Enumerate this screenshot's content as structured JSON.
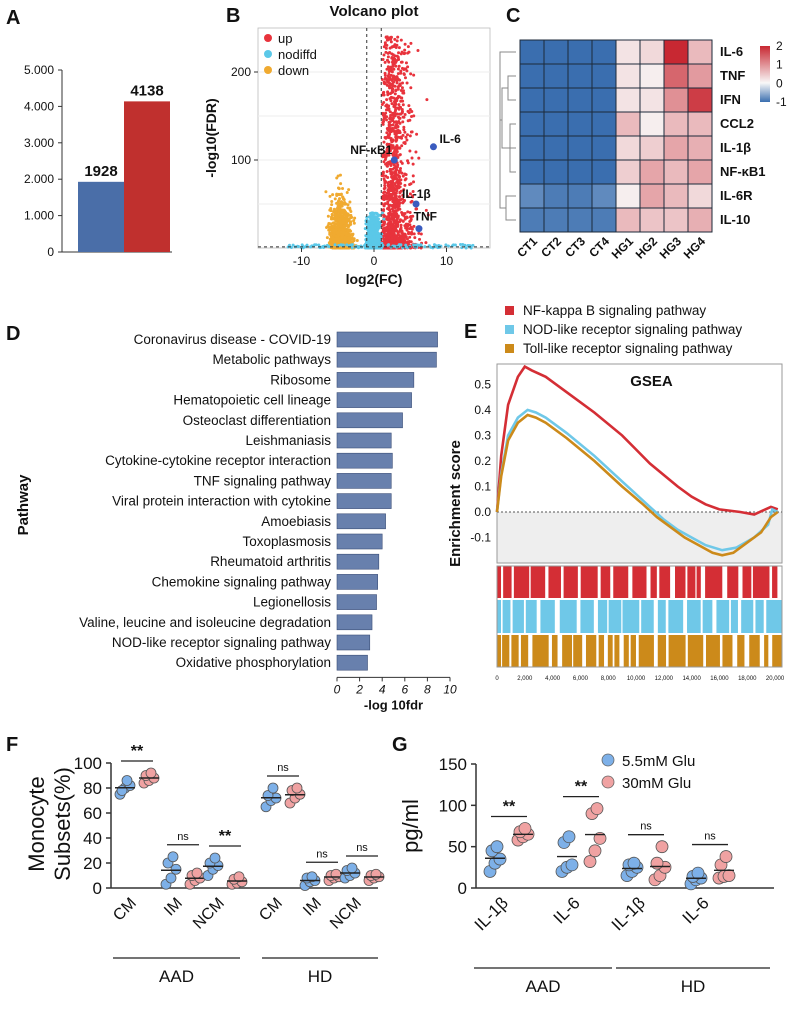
{
  "panel_labels": {
    "A": "A",
    "B": "B",
    "C": "C",
    "D": "D",
    "E": "E",
    "F": "F",
    "G": "G"
  },
  "chart_data": [
    {
      "id": "A",
      "type": "bar",
      "categories": [
        "",
        ""
      ],
      "values": [
        1928,
        4138
      ],
      "colors": [
        "#4a6ea8",
        "#c0302e"
      ],
      "ylim": [
        0,
        5000
      ],
      "yticks": [
        "0",
        "1.000",
        "2.000",
        "3.000",
        "4.000",
        "5.000"
      ],
      "value_labels": [
        "1928",
        "4138"
      ]
    },
    {
      "id": "B",
      "type": "scatter",
      "title": "Volcano plot",
      "xlabel": "log2(FC)",
      "ylabel": "-log10(FDR)",
      "xlim": [
        -16,
        16
      ],
      "ylim": [
        0,
        250
      ],
      "xticks": [
        "-10",
        "0",
        "10"
      ],
      "yticks": [
        "100",
        "200"
      ],
      "legend": [
        {
          "label": "up",
          "color": "#e8333c"
        },
        {
          "label": "nodiffd",
          "color": "#5bc8e8"
        },
        {
          "label": "down",
          "color": "#f0aa30"
        }
      ],
      "highlighted": [
        {
          "gene": "NF-κB1",
          "x": 2.8,
          "y": 100
        },
        {
          "gene": "IL-6",
          "x": 8.2,
          "y": 115
        },
        {
          "gene": "IL-1β",
          "x": 5.8,
          "y": 50
        },
        {
          "gene": "TNF",
          "x": 6.2,
          "y": 22
        }
      ]
    },
    {
      "id": "C",
      "type": "heatmap",
      "rows": [
        "IL-6",
        "TNF",
        "IFN",
        "CCL2",
        "IL-1β",
        "NF-κB1",
        "IL-6R",
        "IL-10"
      ],
      "columns": [
        "CT1",
        "CT2",
        "CT3",
        "CT4",
        "HG1",
        "HG2",
        "HG3",
        "HG4"
      ],
      "values": [
        [
          -1,
          -1,
          -1,
          -1,
          0.2,
          0.3,
          2,
          0.6
        ],
        [
          -1,
          -1,
          -1,
          -1,
          0.2,
          0.1,
          1.4,
          0.9
        ],
        [
          -1,
          -1,
          -1,
          -1,
          0.2,
          0.2,
          1.0,
          1.8
        ],
        [
          -1,
          -1,
          -1,
          -1,
          0.6,
          0.1,
          0.6,
          0.6
        ],
        [
          -1,
          -1,
          -1,
          -1,
          0.3,
          0.4,
          0.8,
          0.7
        ],
        [
          -1,
          -1,
          -1,
          -1,
          0.4,
          0.8,
          0.6,
          0.8
        ],
        [
          -0.8,
          -0.9,
          -0.9,
          -0.8,
          0.1,
          0.8,
          0.6,
          0.3
        ],
        [
          -0.9,
          -0.9,
          -0.9,
          -0.9,
          0.6,
          0.5,
          0.5,
          0.7
        ]
      ],
      "color_range": [
        -1,
        2
      ],
      "legend_ticks": [
        "2",
        "1",
        "0",
        "-1"
      ]
    },
    {
      "id": "D",
      "type": "bar",
      "orientation": "horizontal",
      "ylabel": "Pathway",
      "xlabel": "-log 10fdr",
      "xlim": [
        0,
        10
      ],
      "xticks": [
        "0",
        "2",
        "4",
        "6",
        "8",
        "10"
      ],
      "categories": [
        "Coronavirus disease - COVID-19",
        "Metabolic pathways",
        "Ribosome",
        "Hematopoietic cell lineage",
        "Osteoclast differentiation",
        "Leishmaniasis",
        "Cytokine-cytokine receptor interaction",
        "TNF signaling pathway",
        "Viral protein interaction with cytokine",
        "Amoebiasis",
        "Toxoplasmosis",
        "Rheumatoid arthritis",
        "Chemokine signaling pathway",
        "Legionellosis",
        "Valine, leucine and isoleucine degradation",
        "NOD-like receptor signaling pathway",
        "Oxidative phosphorylation"
      ],
      "values": [
        8.9,
        8.8,
        6.8,
        6.6,
        5.8,
        4.8,
        4.9,
        4.8,
        4.8,
        4.3,
        4.0,
        3.7,
        3.6,
        3.5,
        3.1,
        2.9,
        2.7
      ]
    },
    {
      "id": "E",
      "type": "line",
      "title": "GSEA",
      "ylabel": "Enrichment score",
      "xlim": [
        0,
        20500
      ],
      "ylim": [
        -0.2,
        0.58
      ],
      "yticks": [
        "0.5",
        "0.4",
        "0.3",
        "0.2",
        "0.1",
        "0.0",
        "-0.1"
      ],
      "xticks": [
        "0",
        "2,000",
        "4,000",
        "6,000",
        "8,000",
        "10,000",
        "12,000",
        "14,000",
        "16,000",
        "18,000",
        "20,000"
      ],
      "series": [
        {
          "name": "NF-kappa B signaling pathway",
          "color": "#d42e35",
          "x": [
            0,
            300,
            800,
            1500,
            2000,
            2500,
            3500,
            5000,
            7000,
            9000,
            11000,
            13000,
            14000,
            15000,
            16000,
            17500,
            18500,
            19300,
            19700,
            20200
          ],
          "y": [
            0,
            0.22,
            0.42,
            0.53,
            0.57,
            0.555,
            0.53,
            0.47,
            0.39,
            0.3,
            0.19,
            0.1,
            0.06,
            0.03,
            0.01,
            0.0,
            -0.01,
            0.01,
            0.02,
            0.01
          ]
        },
        {
          "name": "NOD-like receptor signaling pathway",
          "color": "#6fc8e8",
          "x": [
            0,
            300,
            800,
            1500,
            2200,
            2800,
            3500,
            5000,
            7000,
            9000,
            11000,
            12000,
            13000,
            14000,
            15000,
            16200,
            17200,
            18500,
            19500,
            19800,
            20200
          ],
          "y": [
            0,
            0.15,
            0.3,
            0.37,
            0.4,
            0.39,
            0.37,
            0.31,
            0.22,
            0.12,
            0.02,
            -0.03,
            -0.07,
            -0.1,
            -0.13,
            -0.15,
            -0.14,
            -0.1,
            -0.05,
            0.01,
            0.0
          ]
        },
        {
          "name": "Toll-like receptor signaling pathway",
          "color": "#cc8a1a",
          "x": [
            0,
            300,
            800,
            1500,
            2200,
            2800,
            3500,
            5000,
            7000,
            9000,
            10500,
            11500,
            12500,
            13500,
            14500,
            15500,
            16200,
            17000,
            18000,
            19000,
            19700,
            20200
          ],
          "y": [
            0,
            0.14,
            0.28,
            0.35,
            0.38,
            0.37,
            0.35,
            0.29,
            0.2,
            0.1,
            0.03,
            -0.02,
            -0.06,
            -0.1,
            -0.13,
            -0.16,
            -0.17,
            -0.16,
            -0.12,
            -0.08,
            -0.02,
            0.0
          ]
        }
      ]
    },
    {
      "id": "F",
      "type": "scatter",
      "ylabel_lines": [
        "Monocyte",
        "Subsets(%)"
      ],
      "ylim": [
        0,
        100
      ],
      "yticks": [
        "0",
        "20",
        "40",
        "60",
        "80",
        "100"
      ],
      "categories": [
        "CM",
        "IM",
        "NCM",
        "CM",
        "IM",
        "NCM"
      ],
      "groups": [
        "AAD",
        "HD"
      ],
      "series": [
        {
          "name": "5.5mM Glu",
          "color": "#7db0e8",
          "values": [
            [
              75,
              80,
              82,
              78,
              86
            ],
            [
              3,
              8,
              15,
              20,
              25
            ],
            [
              10,
              15,
              18,
              20,
              24
            ],
            [
              65,
              70,
              72,
              74,
              80
            ],
            [
              2,
              5,
              6,
              8,
              9
            ],
            [
              8,
              10,
              12,
              14,
              16
            ]
          ]
        },
        {
          "name": "30mM Glu",
          "color": "#f0a2a2",
          "values": [
            [
              84,
              86,
              88,
              90,
              92
            ],
            [
              3,
              6,
              8,
              10,
              12
            ],
            [
              3,
              4,
              5,
              7,
              9
            ],
            [
              68,
              72,
              75,
              78,
              80
            ],
            [
              6,
              8,
              9,
              10,
              11
            ],
            [
              6,
              8,
              9,
              10,
              11
            ]
          ]
        }
      ],
      "significance": [
        "**",
        "ns",
        "**",
        "ns",
        "ns",
        "ns"
      ]
    },
    {
      "id": "G",
      "type": "scatter",
      "ylabel": "pg/ml",
      "ylim": [
        0,
        150
      ],
      "yticks": [
        "0",
        "50",
        "100",
        "150"
      ],
      "categories": [
        "IL-1β",
        "IL-6",
        "IL-1β",
        "IL-6"
      ],
      "groups": [
        "AAD",
        "HD"
      ],
      "legend": [
        "5.5mM Glu",
        "30mM Glu"
      ],
      "series": [
        {
          "name": "5.5mM Glu",
          "color": "#7db0e8",
          "values": [
            [
              20,
              30,
              35,
              45,
              50
            ],
            [
              20,
              25,
              28,
              55,
              62
            ],
            [
              15,
              20,
              25,
              28,
              30
            ],
            [
              5,
              10,
              12,
              14,
              18
            ]
          ]
        },
        {
          "name": "30mM Glu",
          "color": "#f0a2a2",
          "values": [
            [
              58,
              62,
              65,
              68,
              72
            ],
            [
              32,
              45,
              60,
              90,
              96
            ],
            [
              10,
              15,
              25,
              30,
              50
            ],
            [
              12,
              14,
              15,
              28,
              38
            ]
          ]
        }
      ],
      "significance": [
        "**",
        "**",
        "ns",
        "ns"
      ]
    }
  ]
}
